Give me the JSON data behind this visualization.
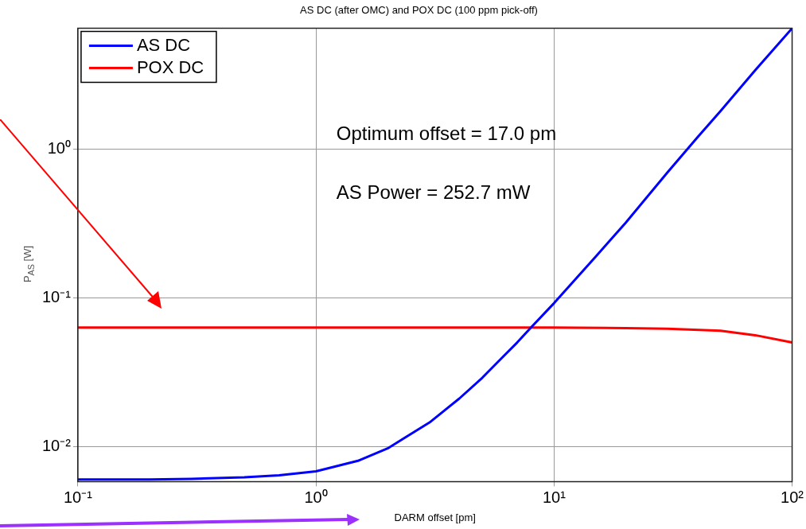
{
  "chart_data": {
    "type": "line",
    "title": "AS DC (after OMC) and POX DC (100 ppm pick-off)",
    "xlabel": "DARM offset [pm]",
    "ylabel": "P$_{AS}$ [W]",
    "annotations": [
      "Optimum offset = 17.0 pm",
      "AS Power = 252.7 mW"
    ],
    "log": "xy",
    "grid": true,
    "legend": "top left",
    "marker": "none",
    "line_style": "solid",
    "xlim": [
      0.1,
      100
    ],
    "ylim": [
      0.0058,
      6.5
    ],
    "xticks": [
      {
        "value": 0.1,
        "label": "10⁻¹"
      },
      {
        "value": 1,
        "label": "10⁰"
      },
      {
        "value": 10,
        "label": "10¹"
      },
      {
        "value": 100,
        "label": "10²"
      }
    ],
    "yticks": [
      {
        "value": 0.01,
        "label": "10⁻²"
      },
      {
        "value": 0.1,
        "label": "10⁻¹"
      },
      {
        "value": 1,
        "label": "10⁰"
      }
    ],
    "series": [
      {
        "name": "AS DC",
        "color": "#0000ff",
        "x": [
          0.1,
          0.2,
          0.3,
          0.5,
          0.7,
          1,
          1.5,
          2,
          3,
          4,
          5,
          6,
          7,
          8,
          10,
          15,
          20,
          30,
          40,
          50,
          70,
          100
        ],
        "values": [
          0.006,
          0.006,
          0.00605,
          0.0062,
          0.0064,
          0.0068,
          0.008,
          0.0097,
          0.0145,
          0.021,
          0.029,
          0.039,
          0.05,
          0.063,
          0.092,
          0.19,
          0.32,
          0.7,
          1.2,
          1.8,
          3.4,
          6.5
        ]
      },
      {
        "name": "POX DC",
        "color": "#ff0000",
        "x": [
          0.1,
          1,
          10,
          20,
          30,
          50,
          70,
          100
        ],
        "values": [
          0.063,
          0.063,
          0.063,
          0.0625,
          0.062,
          0.06,
          0.056,
          0.05
        ]
      }
    ]
  }
}
